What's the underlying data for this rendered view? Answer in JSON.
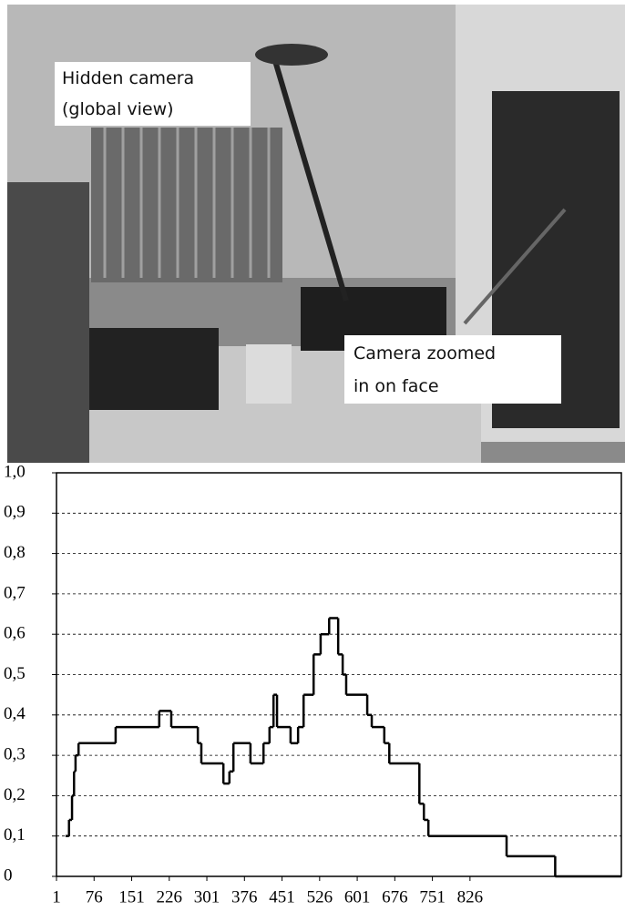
{
  "photo": {
    "labels": [
      [
        "Hidden camera",
        "(global view)"
      ],
      [
        "Camera zoomed",
        "in on face"
      ]
    ]
  },
  "chart_data": {
    "type": "step",
    "x": [
      19,
      26,
      32,
      36,
      39,
      45,
      119,
      206,
      230,
      283,
      290,
      334,
      346,
      354,
      388,
      414,
      426,
      434,
      441,
      468,
      483,
      494,
      514,
      528,
      545,
      563,
      572,
      579,
      621,
      630,
      655,
      665,
      725,
      734,
      743,
      899,
      996,
      1128
    ],
    "values": [
      0.1,
      0.14,
      0.2,
      0.26,
      0.3,
      0.33,
      0.37,
      0.41,
      0.37,
      0.33,
      0.28,
      0.23,
      0.26,
      0.33,
      0.28,
      0.33,
      0.37,
      0.45,
      0.37,
      0.33,
      0.37,
      0.45,
      0.55,
      0.6,
      0.64,
      0.55,
      0.5,
      0.45,
      0.4,
      0.37,
      0.33,
      0.28,
      0.18,
      0.14,
      0.1,
      0.05,
      0,
      0
    ],
    "color": "#000000",
    "xlim": [
      1,
      1128
    ],
    "xticks": [
      1,
      76,
      151,
      226,
      301,
      376,
      451,
      526,
      601,
      676,
      751,
      826
    ],
    "ylim": [
      0,
      1
    ],
    "yticks": [
      0,
      {
        "value": 0.1,
        "label": "0,1"
      },
      {
        "value": 0.2,
        "label": "0,2"
      },
      {
        "value": 0.3,
        "label": "0,3"
      },
      {
        "value": 0.4,
        "label": "0,4"
      },
      {
        "value": 0.5,
        "label": "0,5"
      },
      {
        "value": 0.6,
        "label": "0,6"
      },
      {
        "value": 0.7,
        "label": "0,7"
      },
      {
        "value": 0.8,
        "label": "0,8"
      },
      {
        "value": 0.9,
        "label": "0,9"
      },
      {
        "value": 1,
        "label": "1,0"
      }
    ],
    "grid": true
  }
}
